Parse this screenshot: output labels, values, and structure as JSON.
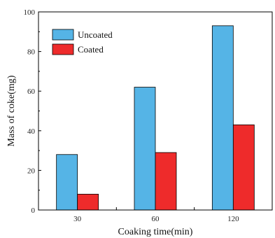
{
  "chart_data": {
    "type": "bar",
    "title": "",
    "xlabel": "Coaking time(min)",
    "ylabel": "Mass of coke(mg)",
    "categories": [
      "30",
      "60",
      "120"
    ],
    "series": [
      {
        "name": "Uncoated",
        "values": [
          28,
          62,
          93
        ],
        "color": "#55b4e6"
      },
      {
        "name": "Coated",
        "values": [
          8,
          29,
          43
        ],
        "color": "#ee2b2b"
      }
    ],
    "ylim": [
      0,
      100
    ],
    "yticks": [
      0,
      20,
      40,
      60,
      80,
      100
    ],
    "legend_position": "top-left",
    "grid": false
  }
}
